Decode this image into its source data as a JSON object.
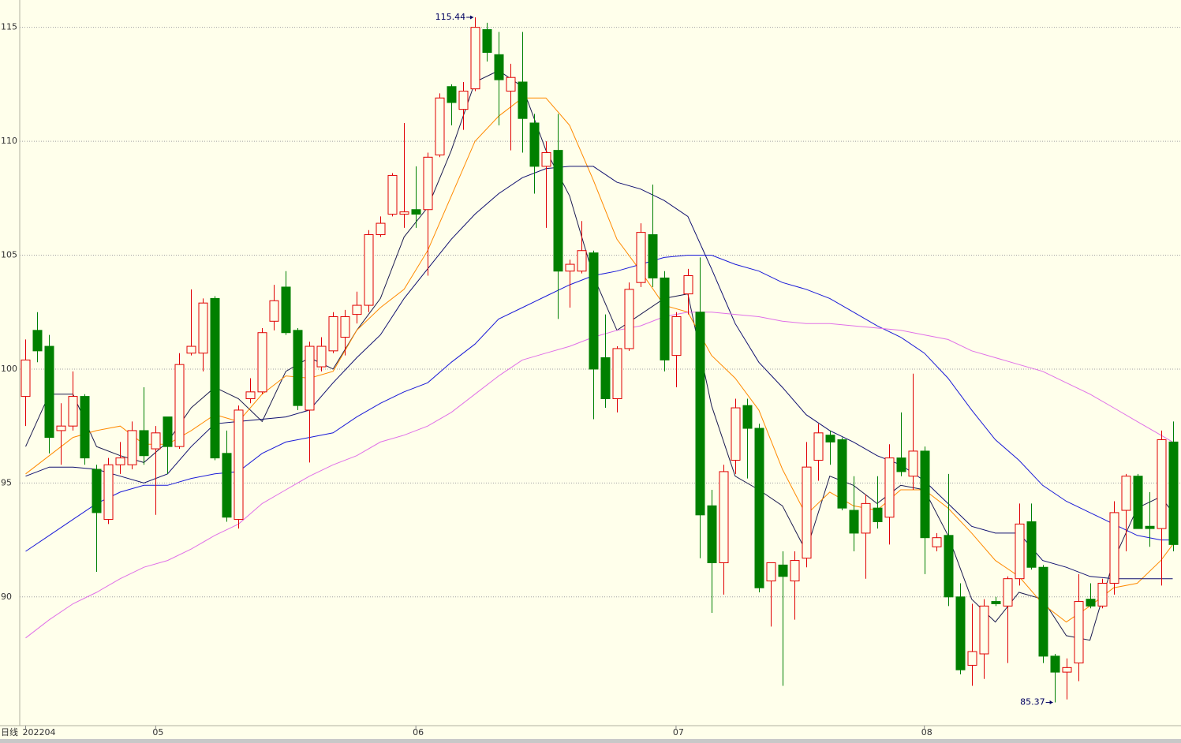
{
  "chart_data": {
    "type": "candlestick",
    "period": "日线",
    "xlim": [
      -0.5,
      97.7
    ],
    "ylim": [
      84.35,
      116.2
    ],
    "yticks": [
      90,
      95,
      100,
      105,
      110,
      115
    ],
    "xticks": [
      {
        "value": 0,
        "label": "202204"
      },
      {
        "value": 11,
        "label": "05"
      },
      {
        "value": 33,
        "label": "06"
      },
      {
        "value": 55,
        "label": "07"
      },
      {
        "value": 76,
        "label": "08"
      }
    ],
    "grid": true,
    "up_color": "#e00000",
    "down_color": "#008000",
    "candles": {
      "open": [
        98.8,
        101.7,
        101.0,
        97.3,
        97.5,
        98.8,
        95.6,
        93.4,
        95.8,
        95.8,
        97.3,
        96.5,
        97.9,
        96.6,
        100.7,
        100.7,
        103.1,
        96.3,
        93.4,
        98.7,
        99.0,
        102.1,
        103.6,
        101.7,
        98.2,
        100.1,
        100.8,
        101.4,
        102.4,
        102.8,
        105.9,
        106.8,
        106.8,
        107.0,
        107.0,
        109.4,
        112.4,
        111.4,
        112.3,
        114.9,
        113.8,
        112.2,
        112.6,
        110.8,
        108.9,
        109.6,
        104.3,
        104.3,
        105.1,
        100.5,
        98.7,
        100.9,
        103.8,
        105.9,
        104.0,
        100.6,
        103.3,
        102.5,
        94.0,
        91.5,
        96.0,
        98.4,
        97.4,
        90.7,
        91.4,
        90.7,
        91.7,
        96.0,
        97.1,
        96.9,
        93.8,
        92.8,
        93.9,
        93.5,
        96.1,
        95.3,
        96.4,
        92.2,
        92.7,
        90.0,
        87.0,
        87.5,
        89.8,
        89.6,
        90.8,
        93.3,
        91.3,
        87.4,
        86.7,
        87.1,
        89.9,
        89.6,
        90.6,
        93.8,
        95.3,
        93.1,
        93.0,
        96.8
      ],
      "high": [
        101.3,
        102.5,
        101.5,
        98.5,
        99.9,
        98.9,
        95.8,
        96.1,
        96.8,
        97.7,
        99.2,
        97.5,
        97.9,
        100.7,
        103.5,
        103.1,
        103.2,
        97.3,
        98.4,
        99.6,
        101.8,
        103.7,
        104.3,
        101.8,
        101.2,
        101.4,
        102.5,
        102.6,
        103.4,
        106.1,
        106.7,
        108.6,
        110.8,
        108.9,
        109.5,
        112.1,
        112.5,
        112.6,
        115.44,
        115.2,
        114.8,
        113.4,
        114.8,
        111.2,
        110.0,
        111.2,
        104.8,
        106.5,
        105.2,
        102.4,
        101.0,
        103.8,
        106.4,
        108.1,
        104.3,
        102.5,
        104.4,
        104.9,
        94.7,
        95.8,
        98.7,
        98.7,
        97.6,
        91.2,
        92.0,
        92.0,
        96.8,
        97.6,
        97.3,
        97.0,
        95.3,
        94.5,
        95.3,
        96.7,
        98.1,
        99.8,
        96.6,
        92.8,
        95.4,
        90.6,
        89.7,
        89.9,
        90.0,
        90.9,
        94.1,
        94.1,
        91.4,
        87.5,
        87.3,
        91.0,
        90.6,
        90.8,
        94.2,
        95.4,
        95.4,
        94.6,
        97.3,
        97.7
      ],
      "low": [
        97.5,
        100.3,
        96.3,
        95.8,
        97.3,
        95.8,
        91.1,
        93.2,
        95.4,
        95.6,
        95.8,
        93.6,
        95.4,
        96.5,
        100.6,
        99.9,
        96.0,
        93.3,
        93.0,
        98.5,
        98.9,
        101.7,
        101.5,
        98.2,
        95.9,
        99.9,
        100.7,
        100.6,
        102.0,
        102.5,
        105.8,
        106.7,
        106.2,
        106.2,
        104.1,
        109.3,
        110.7,
        110.5,
        112.2,
        113.5,
        110.7,
        109.6,
        109.5,
        107.7,
        106.2,
        102.2,
        102.7,
        104.2,
        97.8,
        98.3,
        98.1,
        100.8,
        103.6,
        103.6,
        99.9,
        99.2,
        102.4,
        91.7,
        89.3,
        90.1,
        95.4,
        95.2,
        90.2,
        88.7,
        86.1,
        89.0,
        91.3,
        95.1,
        95.8,
        93.8,
        92.0,
        90.8,
        93.0,
        92.3,
        95.3,
        94.7,
        91.0,
        92.0,
        89.6,
        86.6,
        86.1,
        86.4,
        89.6,
        87.1,
        90.5,
        91.2,
        87.1,
        85.37,
        85.5,
        86.3,
        89.5,
        89.5,
        90.1,
        92.0,
        93.0,
        92.2,
        90.5,
        92.0
      ],
      "close": [
        100.4,
        100.8,
        97.0,
        97.5,
        98.8,
        96.1,
        93.7,
        95.8,
        96.1,
        97.3,
        96.2,
        97.2,
        96.6,
        100.2,
        101.0,
        102.9,
        96.1,
        93.5,
        98.2,
        99.0,
        101.6,
        103.0,
        101.6,
        98.4,
        101.0,
        101.0,
        102.3,
        102.3,
        102.8,
        105.9,
        106.4,
        108.5,
        106.9,
        106.8,
        109.3,
        111.9,
        111.7,
        112.2,
        115.0,
        113.9,
        112.7,
        112.8,
        111.0,
        108.9,
        109.5,
        104.3,
        104.6,
        105.2,
        100.0,
        98.7,
        100.9,
        103.5,
        106.0,
        104.0,
        100.4,
        102.3,
        104.1,
        93.6,
        91.5,
        95.5,
        98.3,
        97.4,
        90.4,
        91.5,
        90.9,
        91.6,
        95.7,
        97.2,
        96.8,
        93.9,
        92.8,
        94.1,
        93.3,
        96.1,
        95.5,
        96.4,
        92.6,
        92.6,
        90.0,
        86.8,
        87.6,
        89.6,
        89.7,
        90.8,
        93.2,
        91.3,
        87.4,
        86.7,
        86.9,
        89.8,
        89.6,
        90.6,
        93.7,
        95.3,
        93.0,
        93.0,
        96.9,
        92.3
      ]
    },
    "series": [
      {
        "color": "#1c1c50",
        "x": [
          0,
          2,
          4,
          6,
          8,
          10,
          12,
          14,
          16,
          18,
          20,
          22,
          24,
          26,
          28,
          30,
          32,
          34,
          36,
          38,
          40,
          42,
          44,
          46,
          48,
          50,
          52,
          54,
          56,
          58,
          60,
          62,
          64,
          66,
          68,
          70,
          72,
          74,
          76,
          78,
          80,
          82,
          84,
          86,
          88,
          90,
          92,
          94,
          96,
          97
        ],
        "values": [
          96.6,
          98.9,
          98.9,
          96.6,
          96.2,
          95.9,
          96.8,
          98.3,
          99.2,
          98.7,
          97.7,
          99.9,
          100.5,
          100.0,
          101.7,
          103.1,
          105.8,
          107.1,
          109.6,
          112.6,
          113.1,
          112.4,
          109.6,
          107.6,
          104.1,
          101.7,
          102.4,
          103.1,
          103.3,
          98.4,
          95.3,
          94.7,
          94.0,
          92.0,
          95.3,
          94.9,
          94.1,
          94.9,
          94.7,
          92.7,
          89.9,
          88.9,
          90.2,
          89.9,
          88.3,
          88.1,
          91.6,
          93.9,
          94.4,
          93.7
        ]
      },
      {
        "color": "#ff8a00",
        "x": [
          0,
          2,
          4,
          6,
          8,
          10,
          12,
          14,
          16,
          18,
          20,
          22,
          24,
          26,
          28,
          30,
          32,
          34,
          36,
          38,
          40,
          42,
          44,
          46,
          48,
          50,
          52,
          54,
          56,
          58,
          60,
          62,
          64,
          66,
          68,
          70,
          72,
          74,
          76,
          78,
          80,
          82,
          84,
          86,
          88,
          90,
          92,
          94,
          96,
          97
        ],
        "values": [
          95.4,
          96.2,
          97.0,
          97.3,
          97.5,
          96.7,
          96.7,
          97.3,
          98.0,
          97.7,
          98.9,
          99.7,
          99.6,
          99.9,
          101.7,
          102.7,
          103.5,
          105.2,
          107.6,
          110.0,
          111.1,
          111.9,
          111.9,
          110.7,
          108.3,
          105.7,
          104.3,
          102.8,
          102.5,
          100.6,
          99.6,
          98.2,
          95.6,
          93.6,
          94.6,
          94.0,
          93.8,
          94.7,
          94.7,
          93.9,
          92.8,
          91.6,
          90.9,
          89.7,
          88.9,
          89.6,
          90.4,
          90.6,
          91.6,
          92.3
        ]
      },
      {
        "color": "#101070",
        "x": [
          0,
          2,
          4,
          6,
          8,
          10,
          12,
          14,
          16,
          18,
          20,
          22,
          24,
          26,
          28,
          30,
          32,
          34,
          36,
          38,
          40,
          42,
          44,
          46,
          48,
          50,
          52,
          54,
          56,
          58,
          60,
          62,
          64,
          66,
          68,
          70,
          72,
          74,
          76,
          78,
          80,
          82,
          84,
          86,
          88,
          90,
          92,
          94,
          96,
          97
        ],
        "values": [
          95.3,
          95.7,
          95.7,
          95.6,
          95.3,
          95.0,
          95.4,
          96.6,
          97.6,
          97.7,
          97.8,
          97.9,
          98.2,
          99.4,
          100.5,
          101.5,
          103.1,
          104.4,
          105.7,
          106.8,
          107.7,
          108.4,
          108.8,
          108.9,
          108.9,
          108.2,
          107.9,
          107.4,
          106.7,
          104.4,
          102.0,
          100.3,
          99.2,
          98.0,
          97.3,
          96.8,
          96.2,
          95.8,
          95.1,
          94.1,
          93.1,
          92.8,
          92.8,
          91.6,
          91.3,
          90.9,
          90.8,
          90.8,
          90.8,
          90.8
        ]
      },
      {
        "color": "#1a1ad8",
        "x": [
          0,
          2,
          4,
          6,
          8,
          10,
          12,
          14,
          16,
          18,
          20,
          22,
          24,
          26,
          28,
          30,
          32,
          34,
          36,
          38,
          40,
          42,
          44,
          46,
          48,
          50,
          52,
          54,
          56,
          58,
          60,
          62,
          64,
          66,
          68,
          70,
          72,
          74,
          76,
          78,
          80,
          82,
          84,
          86,
          88,
          90,
          92,
          94,
          96,
          97
        ],
        "values": [
          92.0,
          92.7,
          93.4,
          94.1,
          94.6,
          94.9,
          94.9,
          95.2,
          95.4,
          95.5,
          96.3,
          96.8,
          97.0,
          97.2,
          97.9,
          98.5,
          99.0,
          99.4,
          100.3,
          101.1,
          102.2,
          102.7,
          103.2,
          103.7,
          104.1,
          104.3,
          104.6,
          104.9,
          105.0,
          105.0,
          104.6,
          104.3,
          103.8,
          103.5,
          103.1,
          102.5,
          101.9,
          101.4,
          100.7,
          99.6,
          98.2,
          96.9,
          96.0,
          94.9,
          94.2,
          93.7,
          93.2,
          92.7,
          92.5,
          92.5
        ]
      },
      {
        "color": "#e070e8",
        "x": [
          0,
          2,
          4,
          6,
          8,
          10,
          12,
          14,
          16,
          18,
          20,
          22,
          24,
          26,
          28,
          30,
          32,
          34,
          36,
          38,
          40,
          42,
          44,
          46,
          48,
          50,
          52,
          54,
          56,
          58,
          60,
          62,
          64,
          66,
          68,
          70,
          72,
          74,
          76,
          78,
          80,
          82,
          84,
          86,
          88,
          90,
          92,
          94,
          96,
          97
        ],
        "values": [
          88.2,
          89.0,
          89.7,
          90.2,
          90.8,
          91.3,
          91.6,
          92.1,
          92.7,
          93.2,
          94.1,
          94.7,
          95.3,
          95.8,
          96.2,
          96.8,
          97.1,
          97.5,
          98.1,
          98.9,
          99.7,
          100.4,
          100.7,
          101.0,
          101.4,
          101.7,
          101.9,
          102.3,
          102.5,
          102.5,
          102.4,
          102.3,
          102.1,
          102.0,
          102.0,
          101.9,
          101.8,
          101.7,
          101.5,
          101.3,
          100.8,
          100.5,
          100.2,
          99.9,
          99.4,
          98.9,
          98.3,
          97.7,
          97.1,
          96.8
        ]
      }
    ]
  }
}
